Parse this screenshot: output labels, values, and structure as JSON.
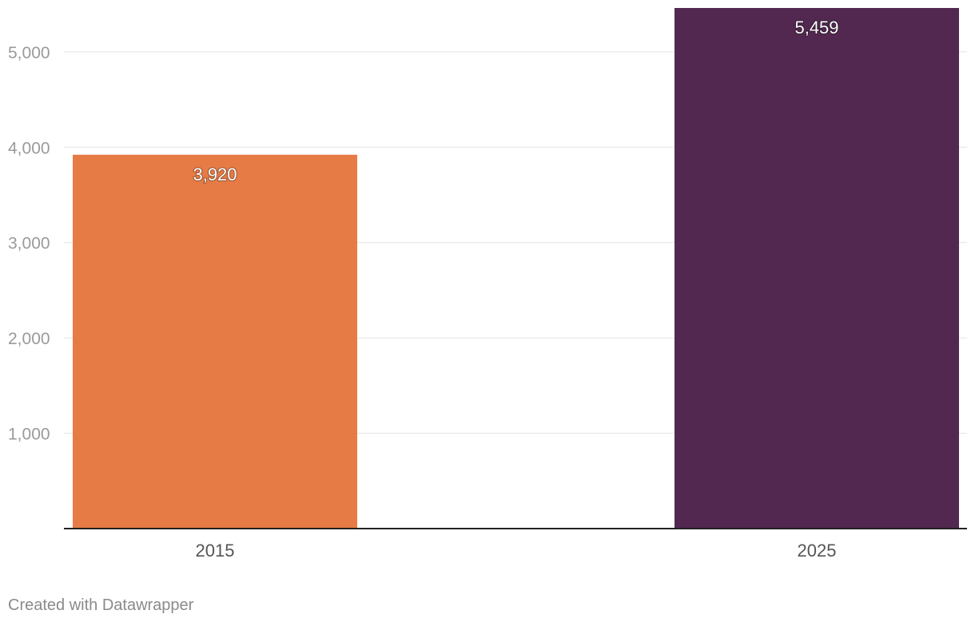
{
  "chart_data": {
    "type": "bar",
    "categories": [
      "2015",
      "2025"
    ],
    "values": [
      3920,
      5459
    ],
    "value_labels": [
      "3,920",
      "5,459"
    ],
    "colors": [
      "#e67b45",
      "#522850"
    ],
    "title": "",
    "xlabel": "",
    "ylabel": "",
    "ylim": [
      0,
      5459
    ],
    "yticks": [
      1000,
      2000,
      3000,
      4000,
      5000
    ],
    "ytick_labels": [
      "1,000",
      "2,000",
      "3,000",
      "4,000",
      "5,000"
    ],
    "grid": true
  },
  "footer": {
    "credit": "Created with Datawrapper"
  }
}
